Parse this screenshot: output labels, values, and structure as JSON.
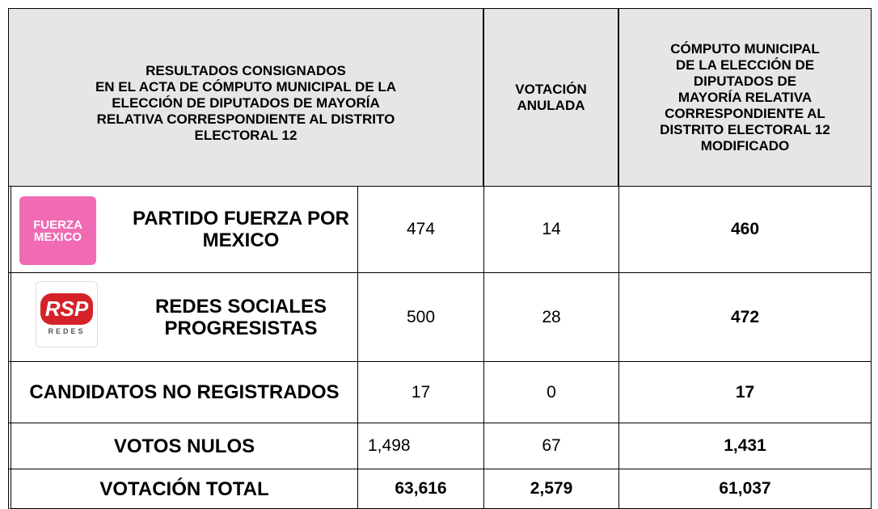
{
  "table": {
    "header": [
      [
        "RESULTADOS CONSIGNADOS",
        "EN EL ACTA DE CÓMPUTO MUNICIPAL DE LA",
        "ELECCIÓN DE DIPUTADOS DE MAYORÍA",
        "RELATIVA CORRESPONDIENTE AL DISTRITO",
        "ELECTORAL 12"
      ],
      [
        "VOTACIÓN",
        "ANULADA"
      ],
      [
        "CÓMPUTO MUNICIPAL",
        "DE LA ELECCIÓN DE",
        "DIPUTADOS DE",
        "MAYORÍA RELATIVA",
        "CORRESPONDIENTE AL",
        "DISTRITO ELECTORAL 12",
        "MODIFICADO"
      ]
    ],
    "rows": [
      {
        "logo": [
          "FUERZA",
          "MEXICO"
        ],
        "cells": [
          "PARTIDO FUERZA POR MEXICO",
          "474",
          "14",
          "460"
        ]
      },
      {
        "logo": [
          "RSP",
          "REDES"
        ],
        "cells": [
          "REDES SOCIALES PROGRESISTAS",
          "500",
          "28",
          "472"
        ]
      },
      {
        "cells": [
          "CANDIDATOS NO REGISTRADOS",
          "17",
          "0",
          "17"
        ]
      },
      {
        "cells": [
          "VOTOS NULOS",
          "1,498",
          "67",
          "1,431"
        ]
      },
      {
        "cells": [
          "VOTACIÓN TOTAL",
          "63,616",
          "2,579",
          "61,037"
        ]
      }
    ]
  }
}
